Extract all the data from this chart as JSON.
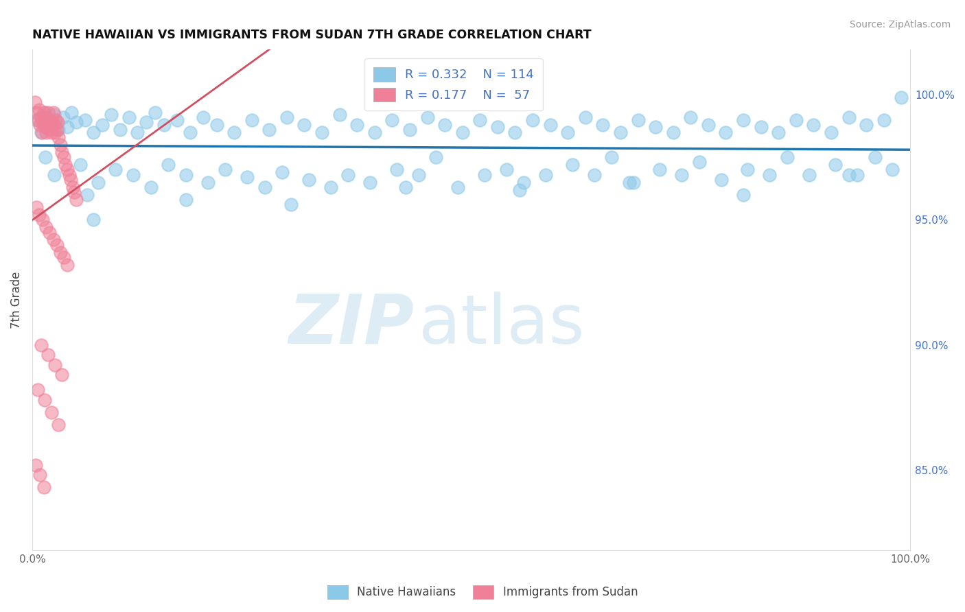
{
  "title": "NATIVE HAWAIIAN VS IMMIGRANTS FROM SUDAN 7TH GRADE CORRELATION CHART",
  "source": "Source: ZipAtlas.com",
  "ylabel": "7th Grade",
  "xmin": 0.0,
  "xmax": 1.0,
  "ymin": 0.818,
  "ymax": 1.018,
  "right_yticks": [
    0.85,
    0.9,
    0.95,
    1.0
  ],
  "right_yticklabels": [
    "85.0%",
    "90.0%",
    "95.0%",
    "100.0%"
  ],
  "blue_color": "#8CC8E8",
  "pink_color": "#F08098",
  "blue_line_color": "#2176AE",
  "pink_line_color": "#D05060",
  "legend_R_blue": "R = 0.332",
  "legend_N_blue": "N = 114",
  "legend_R_pink": "R = 0.177",
  "legend_N_pink": "N =  57",
  "grid_color": "#CCCCCC",
  "blue_scatter_x": [
    0.005,
    0.01,
    0.015,
    0.02,
    0.025,
    0.03,
    0.035,
    0.04,
    0.045,
    0.05,
    0.06,
    0.07,
    0.08,
    0.09,
    0.1,
    0.11,
    0.12,
    0.13,
    0.14,
    0.15,
    0.165,
    0.18,
    0.195,
    0.21,
    0.23,
    0.25,
    0.27,
    0.29,
    0.31,
    0.33,
    0.35,
    0.37,
    0.39,
    0.41,
    0.43,
    0.45,
    0.47,
    0.49,
    0.51,
    0.53,
    0.55,
    0.57,
    0.59,
    0.61,
    0.63,
    0.65,
    0.67,
    0.69,
    0.71,
    0.73,
    0.75,
    0.77,
    0.79,
    0.81,
    0.83,
    0.85,
    0.87,
    0.89,
    0.91,
    0.93,
    0.95,
    0.97,
    0.99,
    0.015,
    0.025,
    0.055,
    0.075,
    0.095,
    0.115,
    0.135,
    0.155,
    0.175,
    0.2,
    0.22,
    0.245,
    0.265,
    0.285,
    0.315,
    0.34,
    0.36,
    0.385,
    0.415,
    0.44,
    0.46,
    0.485,
    0.515,
    0.54,
    0.56,
    0.585,
    0.615,
    0.64,
    0.66,
    0.685,
    0.715,
    0.74,
    0.76,
    0.785,
    0.815,
    0.84,
    0.86,
    0.885,
    0.915,
    0.94,
    0.96,
    0.98,
    0.063,
    0.175,
    0.295,
    0.425,
    0.555,
    0.68,
    0.81,
    0.93,
    0.07
  ],
  "blue_scatter_y": [
    0.99,
    0.985,
    0.993,
    0.988,
    0.992,
    0.986,
    0.991,
    0.987,
    0.993,
    0.989,
    0.99,
    0.985,
    0.988,
    0.992,
    0.986,
    0.991,
    0.985,
    0.989,
    0.993,
    0.988,
    0.99,
    0.985,
    0.991,
    0.988,
    0.985,
    0.99,
    0.986,
    0.991,
    0.988,
    0.985,
    0.992,
    0.988,
    0.985,
    0.99,
    0.986,
    0.991,
    0.988,
    0.985,
    0.99,
    0.987,
    0.985,
    0.99,
    0.988,
    0.985,
    0.991,
    0.988,
    0.985,
    0.99,
    0.987,
    0.985,
    0.991,
    0.988,
    0.985,
    0.99,
    0.987,
    0.985,
    0.99,
    0.988,
    0.985,
    0.991,
    0.988,
    0.99,
    0.999,
    0.975,
    0.968,
    0.972,
    0.965,
    0.97,
    0.968,
    0.963,
    0.972,
    0.968,
    0.965,
    0.97,
    0.967,
    0.963,
    0.969,
    0.966,
    0.963,
    0.968,
    0.965,
    0.97,
    0.968,
    0.975,
    0.963,
    0.968,
    0.97,
    0.965,
    0.968,
    0.972,
    0.968,
    0.975,
    0.965,
    0.97,
    0.968,
    0.973,
    0.966,
    0.97,
    0.968,
    0.975,
    0.968,
    0.972,
    0.968,
    0.975,
    0.97,
    0.96,
    0.958,
    0.956,
    0.963,
    0.962,
    0.965,
    0.96,
    0.968,
    0.95
  ],
  "pink_scatter_x": [
    0.003,
    0.005,
    0.007,
    0.008,
    0.009,
    0.01,
    0.011,
    0.012,
    0.013,
    0.014,
    0.015,
    0.016,
    0.017,
    0.018,
    0.019,
    0.02,
    0.021,
    0.022,
    0.023,
    0.024,
    0.025,
    0.026,
    0.027,
    0.028,
    0.029,
    0.03,
    0.032,
    0.034,
    0.036,
    0.038,
    0.04,
    0.042,
    0.044,
    0.046,
    0.048,
    0.05,
    0.005,
    0.008,
    0.012,
    0.016,
    0.02,
    0.024,
    0.028,
    0.032,
    0.036,
    0.04,
    0.01,
    0.018,
    0.026,
    0.034,
    0.006,
    0.014,
    0.022,
    0.03,
    0.004,
    0.009,
    0.013
  ],
  "pink_scatter_y": [
    0.997,
    0.993,
    0.99,
    0.994,
    0.988,
    0.991,
    0.985,
    0.989,
    0.993,
    0.987,
    0.991,
    0.985,
    0.989,
    0.993,
    0.988,
    0.986,
    0.99,
    0.985,
    0.989,
    0.993,
    0.988,
    0.985,
    0.99,
    0.986,
    0.989,
    0.983,
    0.98,
    0.977,
    0.975,
    0.972,
    0.97,
    0.968,
    0.966,
    0.963,
    0.961,
    0.958,
    0.955,
    0.952,
    0.95,
    0.947,
    0.945,
    0.942,
    0.94,
    0.937,
    0.935,
    0.932,
    0.9,
    0.896,
    0.892,
    0.888,
    0.882,
    0.878,
    0.873,
    0.868,
    0.852,
    0.848,
    0.843
  ]
}
